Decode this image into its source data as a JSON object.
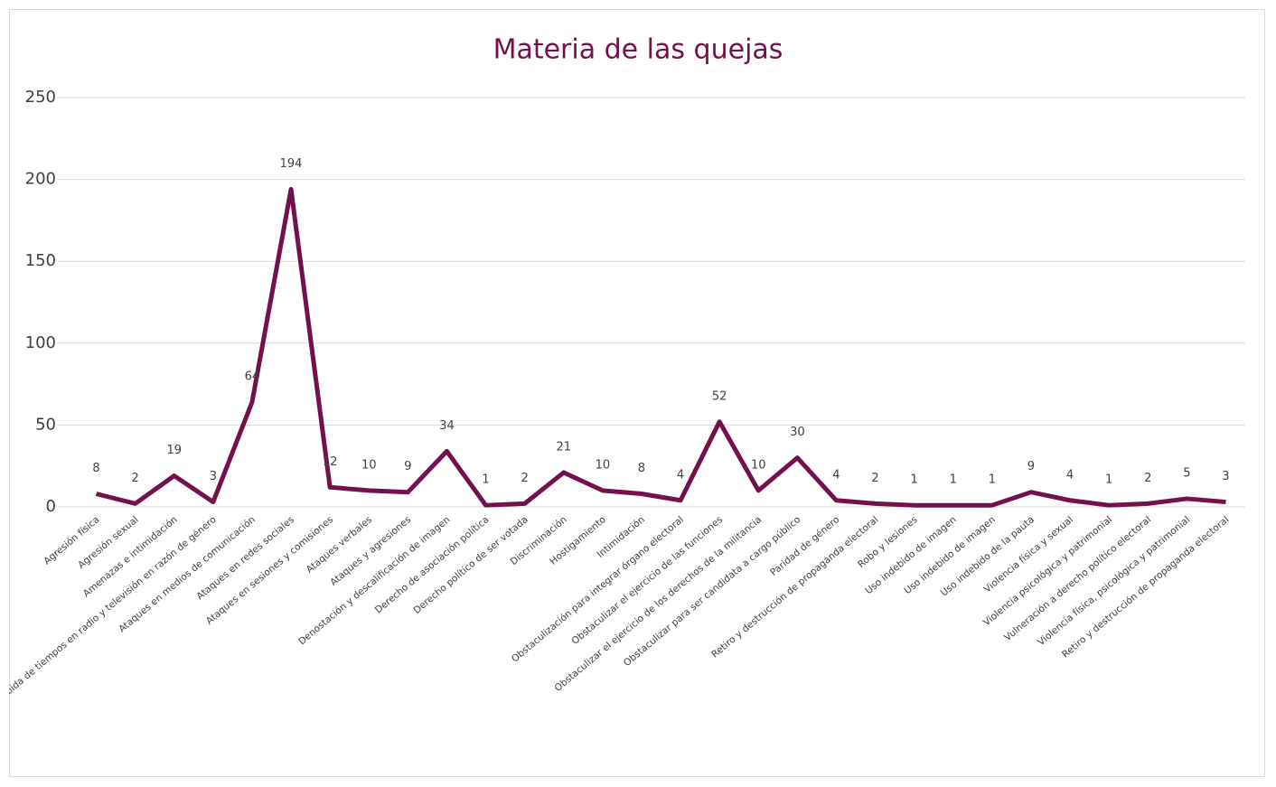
{
  "chart_data": {
    "type": "line",
    "title": "Materia de las quejas",
    "categories": [
      "Agresión física",
      "Agresión sexual",
      "Amenazas e intimidación",
      "Asignación indebida de tiempos en radio y televisión en razón de género",
      "Ataques en medios de comunicación",
      "Ataques en redes sociales",
      "Ataques en sesiones y comisiones",
      "Ataques verbales",
      "Ataques y agresiones",
      "Denostación y descalificación de imagen",
      "Derecho de asociación política",
      "Derecho político de ser votada",
      "Discriminación",
      "Hostigamiento",
      "Intimidación",
      "Obstaculización para integrar órgano electoral",
      "Obstaculizar el ejercicio de las funciones",
      "Obstaculizar el ejercicio de los derechos de la militancia",
      "Obstaculizar para ser candidata a cargo público",
      "Paridad de género",
      "Retiro y destrucción de propaganda electoral",
      "Robo y lesiones",
      "Uso indebido de imagen",
      "Uso indebido de imagen",
      "Uso indebido de la pauta",
      "Violencia física y sexual",
      "Violencia psicológica y patrimonial",
      "Vulneración a derecho político electoral",
      "Violencia física, psicológica y patrimonial",
      "Retiro y destrucción de propaganda electoral"
    ],
    "values": [
      8,
      2,
      19,
      3,
      64,
      194,
      12,
      10,
      9,
      34,
      1,
      2,
      21,
      10,
      8,
      4,
      52,
      10,
      30,
      4,
      2,
      1,
      1,
      1,
      9,
      4,
      1,
      2,
      5,
      3
    ],
    "color": "#74104c",
    "ylim": [
      0,
      250
    ],
    "yticks": [
      0,
      50,
      100,
      150,
      200,
      250
    ],
    "grid": true
  }
}
